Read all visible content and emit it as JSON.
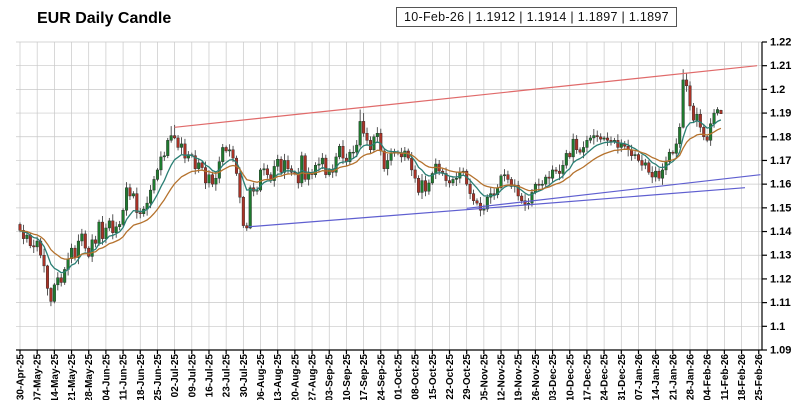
{
  "title": "EUR Daily Candle",
  "ohlc_label": {
    "date": "10-Feb-26",
    "open": "1.1912",
    "high": "1.1914",
    "low": "1.1897",
    "close": "1.1897",
    "text": "10-Feb-26 | 1.1912 | 1.1914 | 1.1897 | 1.1897"
  },
  "chart_data": {
    "type": "candlestick",
    "title": "EUR Daily Candle",
    "y_axis_side": "right",
    "y_range": [
      1.09,
      1.22
    ],
    "y_tick_labels": [
      "1.22",
      "1.21",
      "1.2",
      "1.19",
      "1.18",
      "1.17",
      "1.16",
      "1.15",
      "1.14",
      "1.13",
      "1.12",
      "1.11",
      "1.1",
      "1.09"
    ],
    "y_tick_values": [
      1.22,
      1.21,
      1.2,
      1.19,
      1.18,
      1.17,
      1.16,
      1.15,
      1.14,
      1.13,
      1.12,
      1.11,
      1.1,
      1.09
    ],
    "x_tick_labels": [
      "30-Apr-25",
      "07-May-25",
      "14-May-25",
      "21-May-25",
      "28-May-25",
      "04-Jun-25",
      "11-Jun-25",
      "18-Jun-25",
      "25-Jun-25",
      "02-Jul-25",
      "09-Jul-25",
      "16-Jul-25",
      "23-Jul-25",
      "30-Jul-25",
      "06-Aug-25",
      "13-Aug-25",
      "20-Aug-25",
      "27-Aug-25",
      "03-Sep-25",
      "10-Sep-25",
      "17-Sep-25",
      "24-Sep-25",
      "01-Oct-25",
      "08-Oct-25",
      "15-Oct-25",
      "22-Oct-25",
      "29-Oct-25",
      "05-Nov-25",
      "12-Nov-25",
      "19-Nov-25",
      "26-Nov-25",
      "03-Dec-25",
      "10-Dec-25",
      "17-Dec-25",
      "24-Dec-25",
      "31-Dec-25",
      "07-Jan-26",
      "14-Jan-26",
      "21-Jan-26",
      "28-Jan-26",
      "04-Feb-26",
      "11-Feb-26",
      "18-Feb-26",
      "25-Feb-26"
    ],
    "days_per_tick": 5,
    "first_open": 1.143,
    "closes": [
      1.1405,
      1.137,
      1.1385,
      1.134,
      1.1335,
      1.136,
      1.13,
      1.1255,
      1.116,
      1.1105,
      1.1175,
      1.1205,
      1.1185,
      1.124,
      1.1285,
      1.133,
      1.129,
      1.136,
      1.139,
      1.133,
      1.1295,
      1.1365,
      1.135,
      1.144,
      1.137,
      1.1415,
      1.1445,
      1.1395,
      1.142,
      1.143,
      1.149,
      1.1585,
      1.155,
      1.156,
      1.148,
      1.1475,
      1.1495,
      1.152,
      1.1575,
      1.162,
      1.166,
      1.1715,
      1.172,
      1.1785,
      1.1805,
      1.1795,
      1.1755,
      1.177,
      1.171,
      1.1725,
      1.172,
      1.1665,
      1.169,
      1.167,
      1.1605,
      1.164,
      1.16,
      1.1625,
      1.1695,
      1.1755,
      1.174,
      1.1745,
      1.171,
      1.1645,
      1.1545,
      1.1425,
      1.1415,
      1.1585,
      1.157,
      1.1575,
      1.166,
      1.1665,
      1.164,
      1.1615,
      1.1675,
      1.1705,
      1.165,
      1.17,
      1.1665,
      1.165,
      1.1645,
      1.1605,
      1.172,
      1.162,
      1.1645,
      1.164,
      1.168,
      1.1685,
      1.171,
      1.164,
      1.166,
      1.165,
      1.1715,
      1.176,
      1.171,
      1.1695,
      1.1735,
      1.1735,
      1.1765,
      1.1865,
      1.1815,
      1.1785,
      1.1745,
      1.18,
      1.1815,
      1.174,
      1.1665,
      1.17,
      1.173,
      1.1735,
      1.173,
      1.1715,
      1.174,
      1.171,
      1.166,
      1.1625,
      1.1565,
      1.1615,
      1.157,
      1.1605,
      1.1645,
      1.1685,
      1.1655,
      1.1645,
      1.1615,
      1.1605,
      1.162,
      1.1625,
      1.165,
      1.1655,
      1.16,
      1.156,
      1.153,
      1.152,
      1.149,
      1.1495,
      1.1545,
      1.156,
      1.1555,
      1.1585,
      1.1635,
      1.164,
      1.162,
      1.159,
      1.1595,
      1.155,
      1.153,
      1.1515,
      1.152,
      1.1565,
      1.16,
      1.1595,
      1.16,
      1.163,
      1.1625,
      1.166,
      1.1655,
      1.1645,
      1.168,
      1.173,
      1.1715,
      1.179,
      1.1745,
      1.1735,
      1.1755,
      1.1785,
      1.1795,
      1.1805,
      1.18,
      1.179,
      1.1795,
      1.1785,
      1.178,
      1.1785,
      1.1755,
      1.177,
      1.176,
      1.1745,
      1.172,
      1.1725,
      1.17,
      1.168,
      1.169,
      1.165,
      1.163,
      1.1655,
      1.1625,
      1.166,
      1.1695,
      1.1735,
      1.173,
      1.177,
      1.184,
      1.204,
      1.2015,
      1.193,
      1.187,
      1.1895,
      1.184,
      1.18,
      1.1785,
      1.1855,
      1.19,
      1.1915,
      1.1897
    ],
    "candle_overrides": {
      "8": [
        1.1255,
        1.126,
        1.113,
        1.116
      ],
      "9": [
        1.116,
        1.1165,
        1.1085,
        1.1105
      ],
      "44": [
        1.1785,
        1.1845,
        1.1775,
        1.1805
      ],
      "45": [
        1.1805,
        1.185,
        1.179,
        1.1795
      ],
      "65": [
        1.1545,
        1.155,
        1.1415,
        1.1425
      ],
      "67": [
        1.1415,
        1.1595,
        1.141,
        1.1585
      ],
      "99": [
        1.1765,
        1.1915,
        1.1755,
        1.1865
      ],
      "100": [
        1.1865,
        1.19,
        1.18,
        1.1815
      ],
      "193": [
        1.184,
        1.2085,
        1.1835,
        1.204
      ],
      "194": [
        1.204,
        1.207,
        1.199,
        1.2015
      ],
      "204": [
        1.1912,
        1.1914,
        1.1897,
        1.1897
      ]
    },
    "moving_averages": [
      {
        "name": "fast-ma",
        "period": 9,
        "color": "#2a7f74"
      },
      {
        "name": "slow-ma",
        "period": 20,
        "color": "#b5722d"
      }
    ],
    "trendlines": [
      {
        "name": "resistance-line",
        "color": "#e06a6a",
        "week_from": 9.0,
        "price_from": 1.184,
        "week_to": 42.9,
        "price_to": 1.21
      },
      {
        "name": "support-line-long",
        "color": "#5f5fd0",
        "week_from": 13.3,
        "price_from": 1.142,
        "week_to": 42.2,
        "price_to": 1.1585
      },
      {
        "name": "support-line-steep",
        "color": "#5f5fd0",
        "week_from": 26.0,
        "price_from": 1.1498,
        "week_to": 43.1,
        "price_to": 1.164
      }
    ],
    "colors": {
      "up": "#1e7a2e",
      "down": "#a93226",
      "candle_outline": "#222222",
      "wick": "#444444",
      "grid": "#c8c8c8",
      "axis": "#000000",
      "text": "#000000"
    },
    "grid": true,
    "legend": false
  }
}
